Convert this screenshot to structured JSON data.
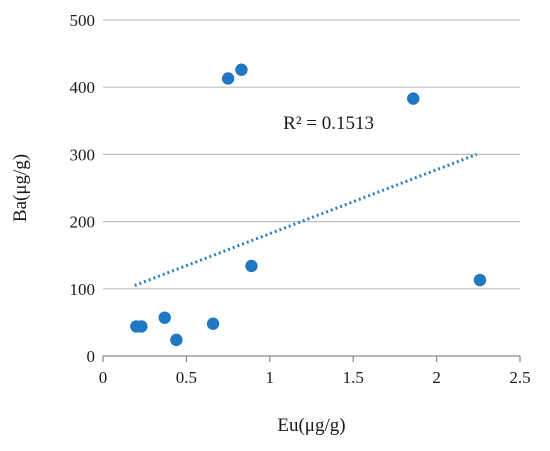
{
  "chart_data": {
    "type": "scatter",
    "title": "",
    "xlabel": "Eu(μg/g)",
    "ylabel": "Ba(μg/g)",
    "xlim": [
      0,
      2.5
    ],
    "ylim": [
      0,
      500
    ],
    "x_ticks": [
      0,
      0.5,
      1,
      1.5,
      2,
      2.5
    ],
    "x_tick_labels": [
      "0",
      "0.5",
      "1",
      "1.5",
      "2",
      "2.5"
    ],
    "y_ticks": [
      0,
      100,
      200,
      300,
      400,
      500
    ],
    "y_tick_labels": [
      "0",
      "100",
      "200",
      "300",
      "400",
      "500"
    ],
    "grid": "horizontal",
    "legend": "none",
    "series": [
      {
        "points": [
          {
            "x": 0.2,
            "y": 44
          },
          {
            "x": 0.23,
            "y": 44
          },
          {
            "x": 0.37,
            "y": 57
          },
          {
            "x": 0.44,
            "y": 24
          },
          {
            "x": 0.66,
            "y": 48
          },
          {
            "x": 0.75,
            "y": 413
          },
          {
            "x": 0.83,
            "y": 426
          },
          {
            "x": 0.89,
            "y": 134
          },
          {
            "x": 1.86,
            "y": 383
          },
          {
            "x": 2.26,
            "y": 113
          }
        ],
        "color": "#1f78c1"
      }
    ],
    "trendline": {
      "type": "linear",
      "x_range": [
        0.19,
        2.24
      ],
      "y_range": [
        105,
        300
      ],
      "style": "dotted",
      "color": "#2a7fc1"
    },
    "annotations": [
      {
        "text": "R² = 0.1513",
        "x": 1.08,
        "y": 338
      }
    ],
    "colors": {
      "marker": "#1f78c1",
      "trendline": "#2a7fc1",
      "grid": "#bfbfbf",
      "axis": "#8c8c8c"
    }
  }
}
